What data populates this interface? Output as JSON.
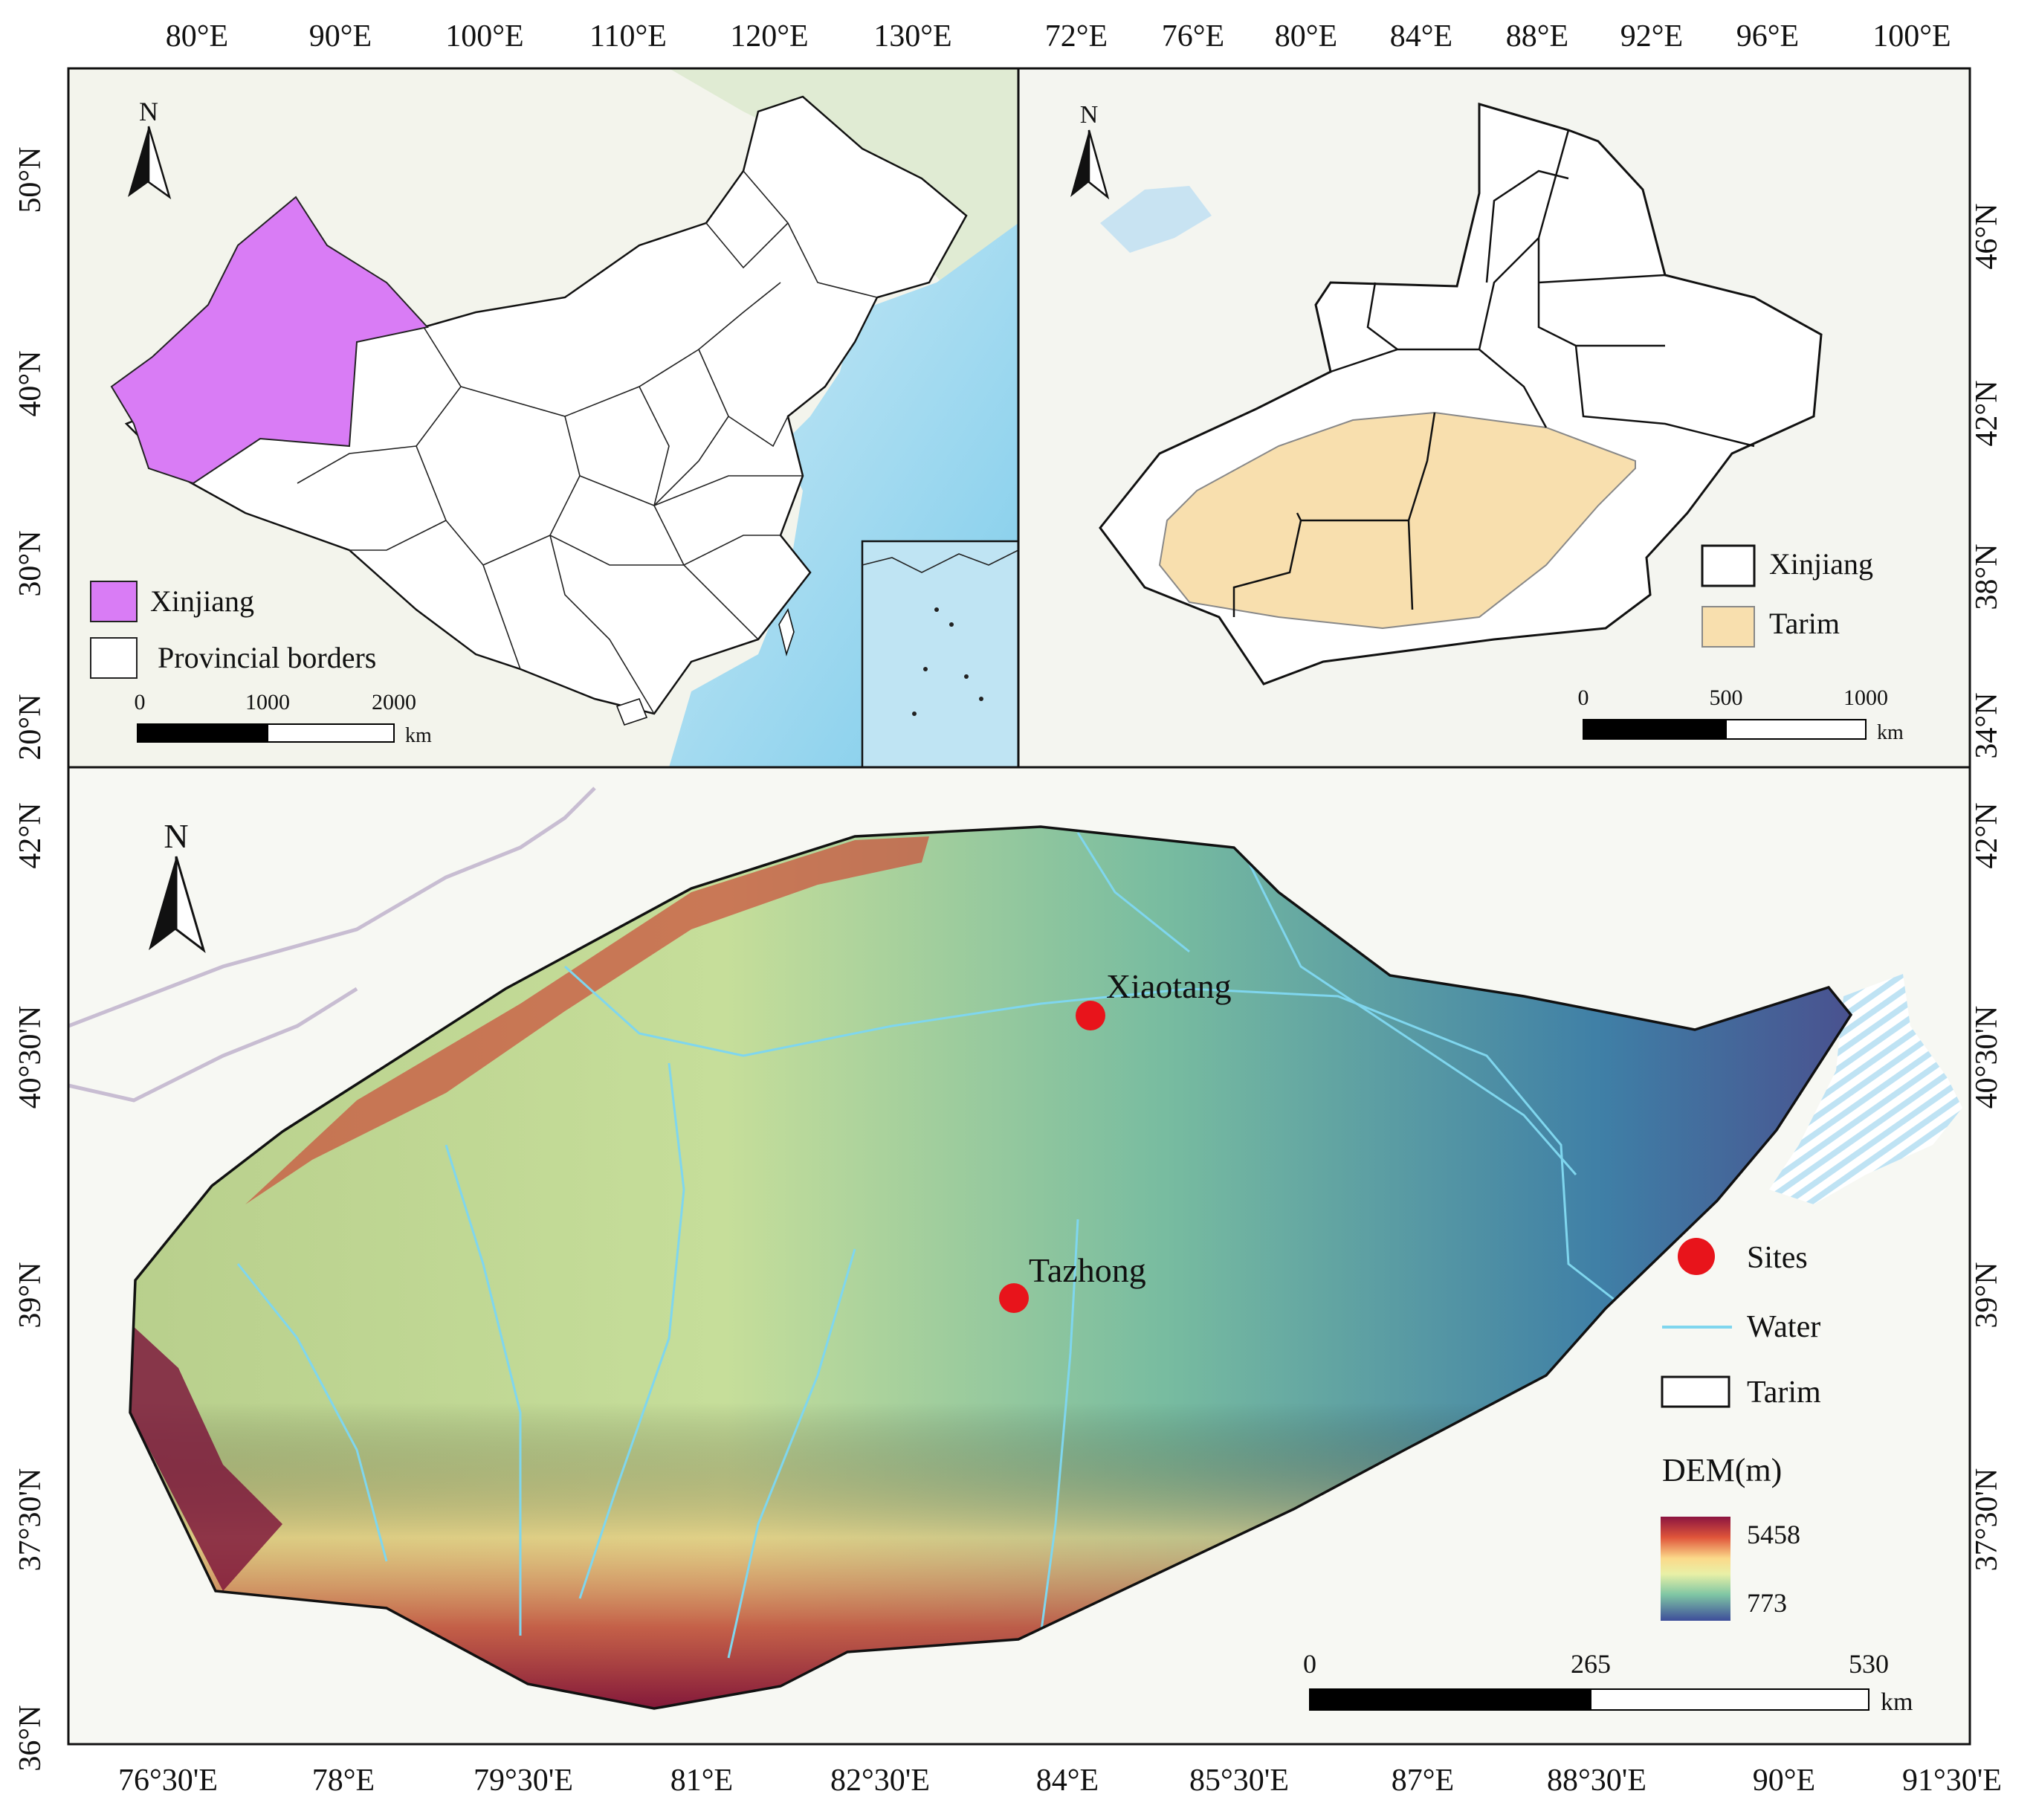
{
  "panels": {
    "china": {
      "top_ticks": [
        "80°E",
        "90°E",
        "100°E",
        "110°E",
        "120°E",
        "130°E"
      ],
      "left_ticks": [
        "50°N",
        "40°N",
        "30°N",
        "20°N"
      ],
      "north_label": "N",
      "legend": [
        {
          "label": "Xinjiang",
          "swatch": "#d97cf5"
        },
        {
          "label": "Provincial borders",
          "swatch": "#ffffff"
        }
      ],
      "scalebar": {
        "ticks": [
          "0",
          "1000",
          "2000"
        ],
        "unit": "km"
      }
    },
    "xinjiang": {
      "top_ticks": [
        "72°E",
        "76°E",
        "80°E",
        "84°E",
        "88°E",
        "92°E",
        "96°E",
        "100°E"
      ],
      "right_ticks": [
        "46°N",
        "42°N",
        "38°N",
        "34°N"
      ],
      "north_label": "N",
      "legend": [
        {
          "label": "Xinjiang",
          "swatch": "#ffffff"
        },
        {
          "label": "Tarim",
          "swatch": "#f8dfae"
        }
      ],
      "scalebar": {
        "ticks": [
          "0",
          "500",
          "1000"
        ],
        "unit": "km"
      }
    },
    "tarim": {
      "bottom_ticks": [
        "76°30'E",
        "78°E",
        "79°30'E",
        "81°E",
        "82°30'E",
        "84°E",
        "85°30'E",
        "87°E",
        "88°30'E",
        "90°E",
        "91°30'E"
      ],
      "left_ticks": [
        "42°N",
        "40°30'N",
        "39°N",
        "37°30'N",
        "36°N"
      ],
      "right_ticks": [
        "42°N",
        "40°30'N",
        "39°N",
        "37°30'N"
      ],
      "north_label": "N",
      "sites": [
        {
          "name": "Xiaotang",
          "lon": 84.2,
          "lat": 40.5
        },
        {
          "name": "Tazhong",
          "lon": 83.7,
          "lat": 39.0
        }
      ],
      "legend": {
        "sites": "Sites",
        "water": "Water",
        "tarim": "Tarim",
        "dem_title": "DEM(m)",
        "dem_max": "5458",
        "dem_min": "773"
      },
      "scalebar": {
        "ticks": [
          "0",
          "265",
          "530"
        ],
        "unit": "km"
      }
    }
  },
  "colors": {
    "xinjiang_fill": "#d97cf5",
    "tarim_fill": "#f8dfae",
    "site_marker": "#e8141b",
    "water": "#7fd6ee",
    "dem_high": "#7a0f38",
    "dem_low": "#3b4a8c"
  }
}
